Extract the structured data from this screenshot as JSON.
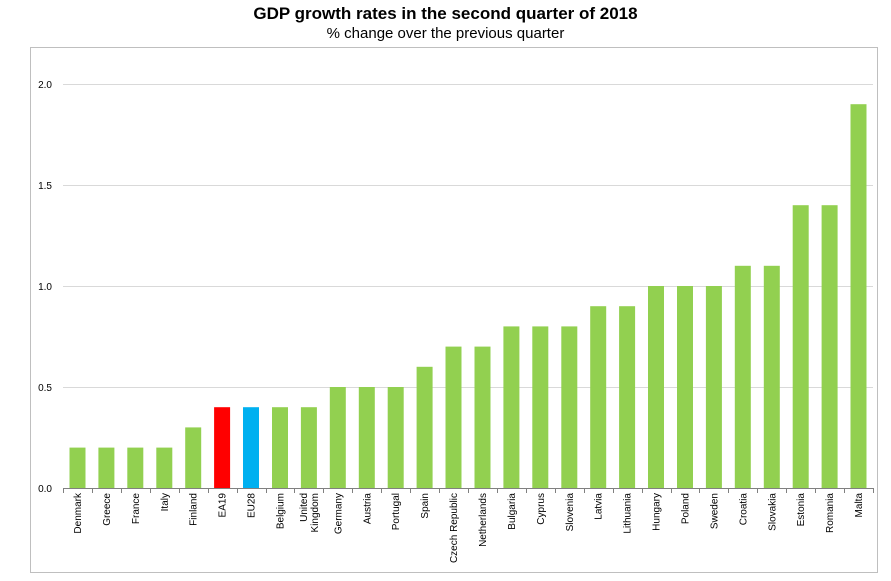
{
  "chart_data": {
    "type": "bar",
    "title": "GDP growth rates in the second quarter of 2018",
    "subtitle": "% change over the previous quarter",
    "xlabel": "",
    "ylabel": "",
    "ylim": [
      0,
      2.0
    ],
    "yticks": [
      "0.0",
      "0.5",
      "1.0",
      "1.5",
      "2.0"
    ],
    "grid": true,
    "categories": [
      [
        "Denmark"
      ],
      [
        "Greece"
      ],
      [
        "France"
      ],
      [
        "Italy"
      ],
      [
        "Finland"
      ],
      [
        "EA19"
      ],
      [
        "EU28"
      ],
      [
        "Belgium"
      ],
      [
        "United",
        "Kingdom"
      ],
      [
        "Germany"
      ],
      [
        "Austria"
      ],
      [
        "Portugal"
      ],
      [
        "Spain"
      ],
      [
        "Czech Republic"
      ],
      [
        "Netherlands"
      ],
      [
        "Bulgaria"
      ],
      [
        "Cyprus"
      ],
      [
        "Slovenia"
      ],
      [
        "Latvia"
      ],
      [
        "Lithuania"
      ],
      [
        "Hungary"
      ],
      [
        "Poland"
      ],
      [
        "Sweden"
      ],
      [
        "Croatia"
      ],
      [
        "Slovakia"
      ],
      [
        "Estonia"
      ],
      [
        "Romania"
      ],
      [
        "Malta"
      ]
    ],
    "values": [
      0.2,
      0.2,
      0.2,
      0.2,
      0.3,
      0.4,
      0.4,
      0.4,
      0.4,
      0.5,
      0.5,
      0.5,
      0.6,
      0.7,
      0.7,
      0.8,
      0.8,
      0.8,
      0.9,
      0.9,
      1.0,
      1.0,
      1.0,
      1.1,
      1.1,
      1.4,
      1.4,
      1.9
    ],
    "colors": {
      "default": "#92d050",
      "EA19": "#ff0000",
      "EU28": "#00b0f0",
      "grid": "#d9d9d9",
      "axis": "#808080",
      "frame": "#bfbfbf"
    }
  }
}
